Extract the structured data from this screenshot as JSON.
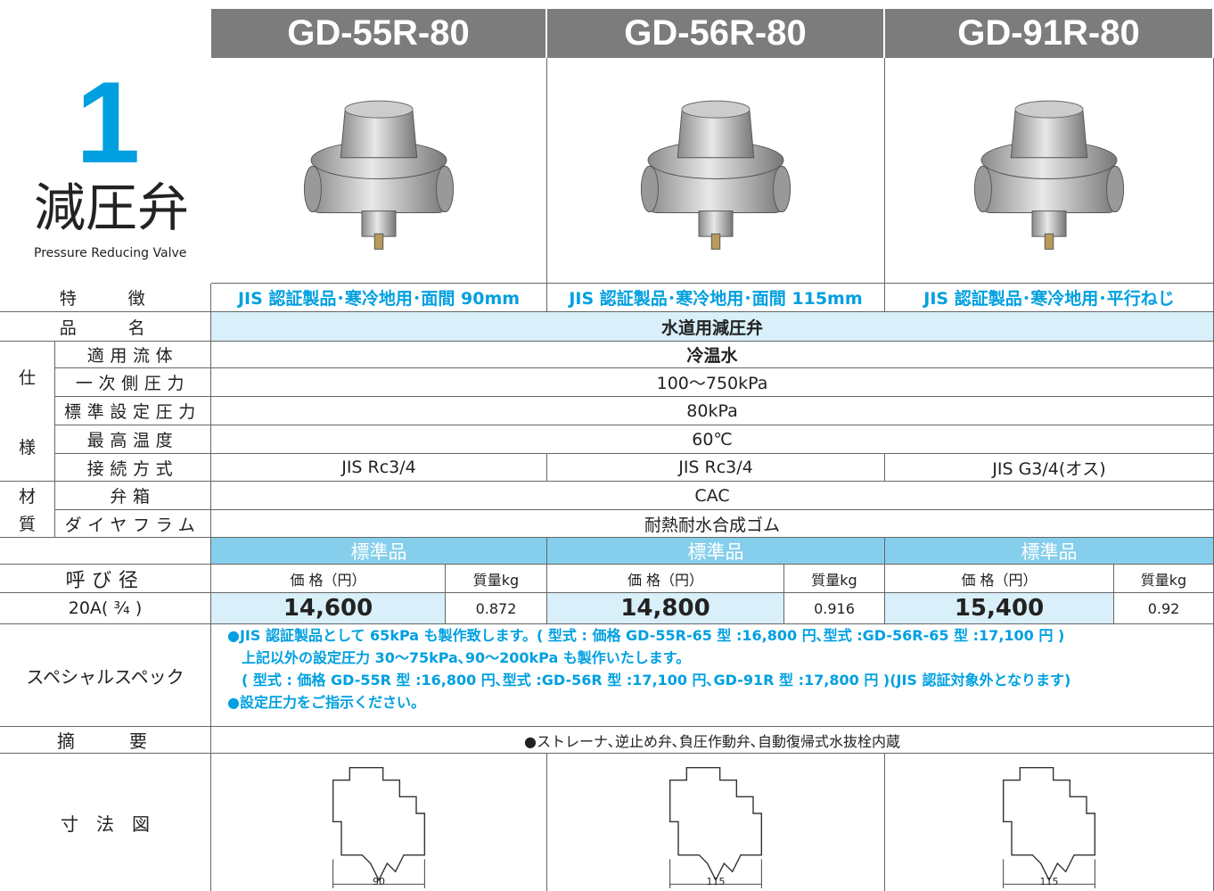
{
  "header": {
    "number": "1",
    "title": "減圧弁",
    "subtitle": "Pressure Reducing Valve"
  },
  "models": [
    "GD-55R-80",
    "GD-56R-80",
    "GD-91R-80"
  ],
  "features": {
    "label": "特　　徴",
    "values": [
      "JIS 認証製品･寒冷地用･面間 90mm",
      "JIS 認証製品･寒冷地用･面間 115mm",
      "JIS 認証製品･寒冷地用･平行ねじ"
    ]
  },
  "product_name": {
    "label": "品　　名",
    "value": "水道用減圧弁"
  },
  "spec": {
    "group": [
      "仕",
      "様"
    ],
    "rows": [
      {
        "label": "適用流体",
        "value": "冷温水"
      },
      {
        "label": "一次側圧力",
        "value": "100～750kPa"
      },
      {
        "label": "標準設定圧力",
        "value": "80kPa"
      },
      {
        "label": "最高温度",
        "value": "60℃"
      }
    ],
    "connection": {
      "label": "接続方式",
      "values": [
        "JIS Rc3/4",
        "JIS Rc3/4",
        "JIS G3/4(オス)"
      ]
    }
  },
  "material": {
    "group": [
      "材",
      "質"
    ],
    "rows": [
      {
        "label": "弁箱",
        "value": "CAC"
      },
      {
        "label": "ダイヤフラム",
        "value": "耐熱耐水合成ゴム"
      }
    ]
  },
  "standard_label": "標準品",
  "size_label": "呼び径",
  "price_label": "価 格（円）",
  "mass_label": "質量kg",
  "size": "20A( ³⁄₄ )",
  "prices": [
    "14,600",
    "14,800",
    "15,400"
  ],
  "masses": [
    "0.872",
    "0.916",
    "0.92"
  ],
  "special": {
    "label": "スペシャルスペック",
    "lines": [
      "●JIS 認証製品として 65kPa も製作致します。( 型式 : 価格 GD-55R-65 型 :16,800 円､型式 :GD-56R-65 型 :17,100 円 )",
      "　上記以外の設定圧力 30～75kPa､90～200kPa も製作いたします。",
      "　( 型式 : 価格 GD-55R 型 :16,800 円､型式 :GD-56R 型 :17,100 円､GD-91R 型 :17,800 円 )(JIS 認証対象外となります)",
      "●設定圧力をご指示ください。"
    ]
  },
  "notes": {
    "label": "摘　　要",
    "value": "●ストレーナ､逆止め弁､負圧作動弁､自動復帰式水抜栓内蔵"
  },
  "dimension": {
    "label": "寸　法　図",
    "values": [
      "90",
      "115",
      "115"
    ]
  }
}
